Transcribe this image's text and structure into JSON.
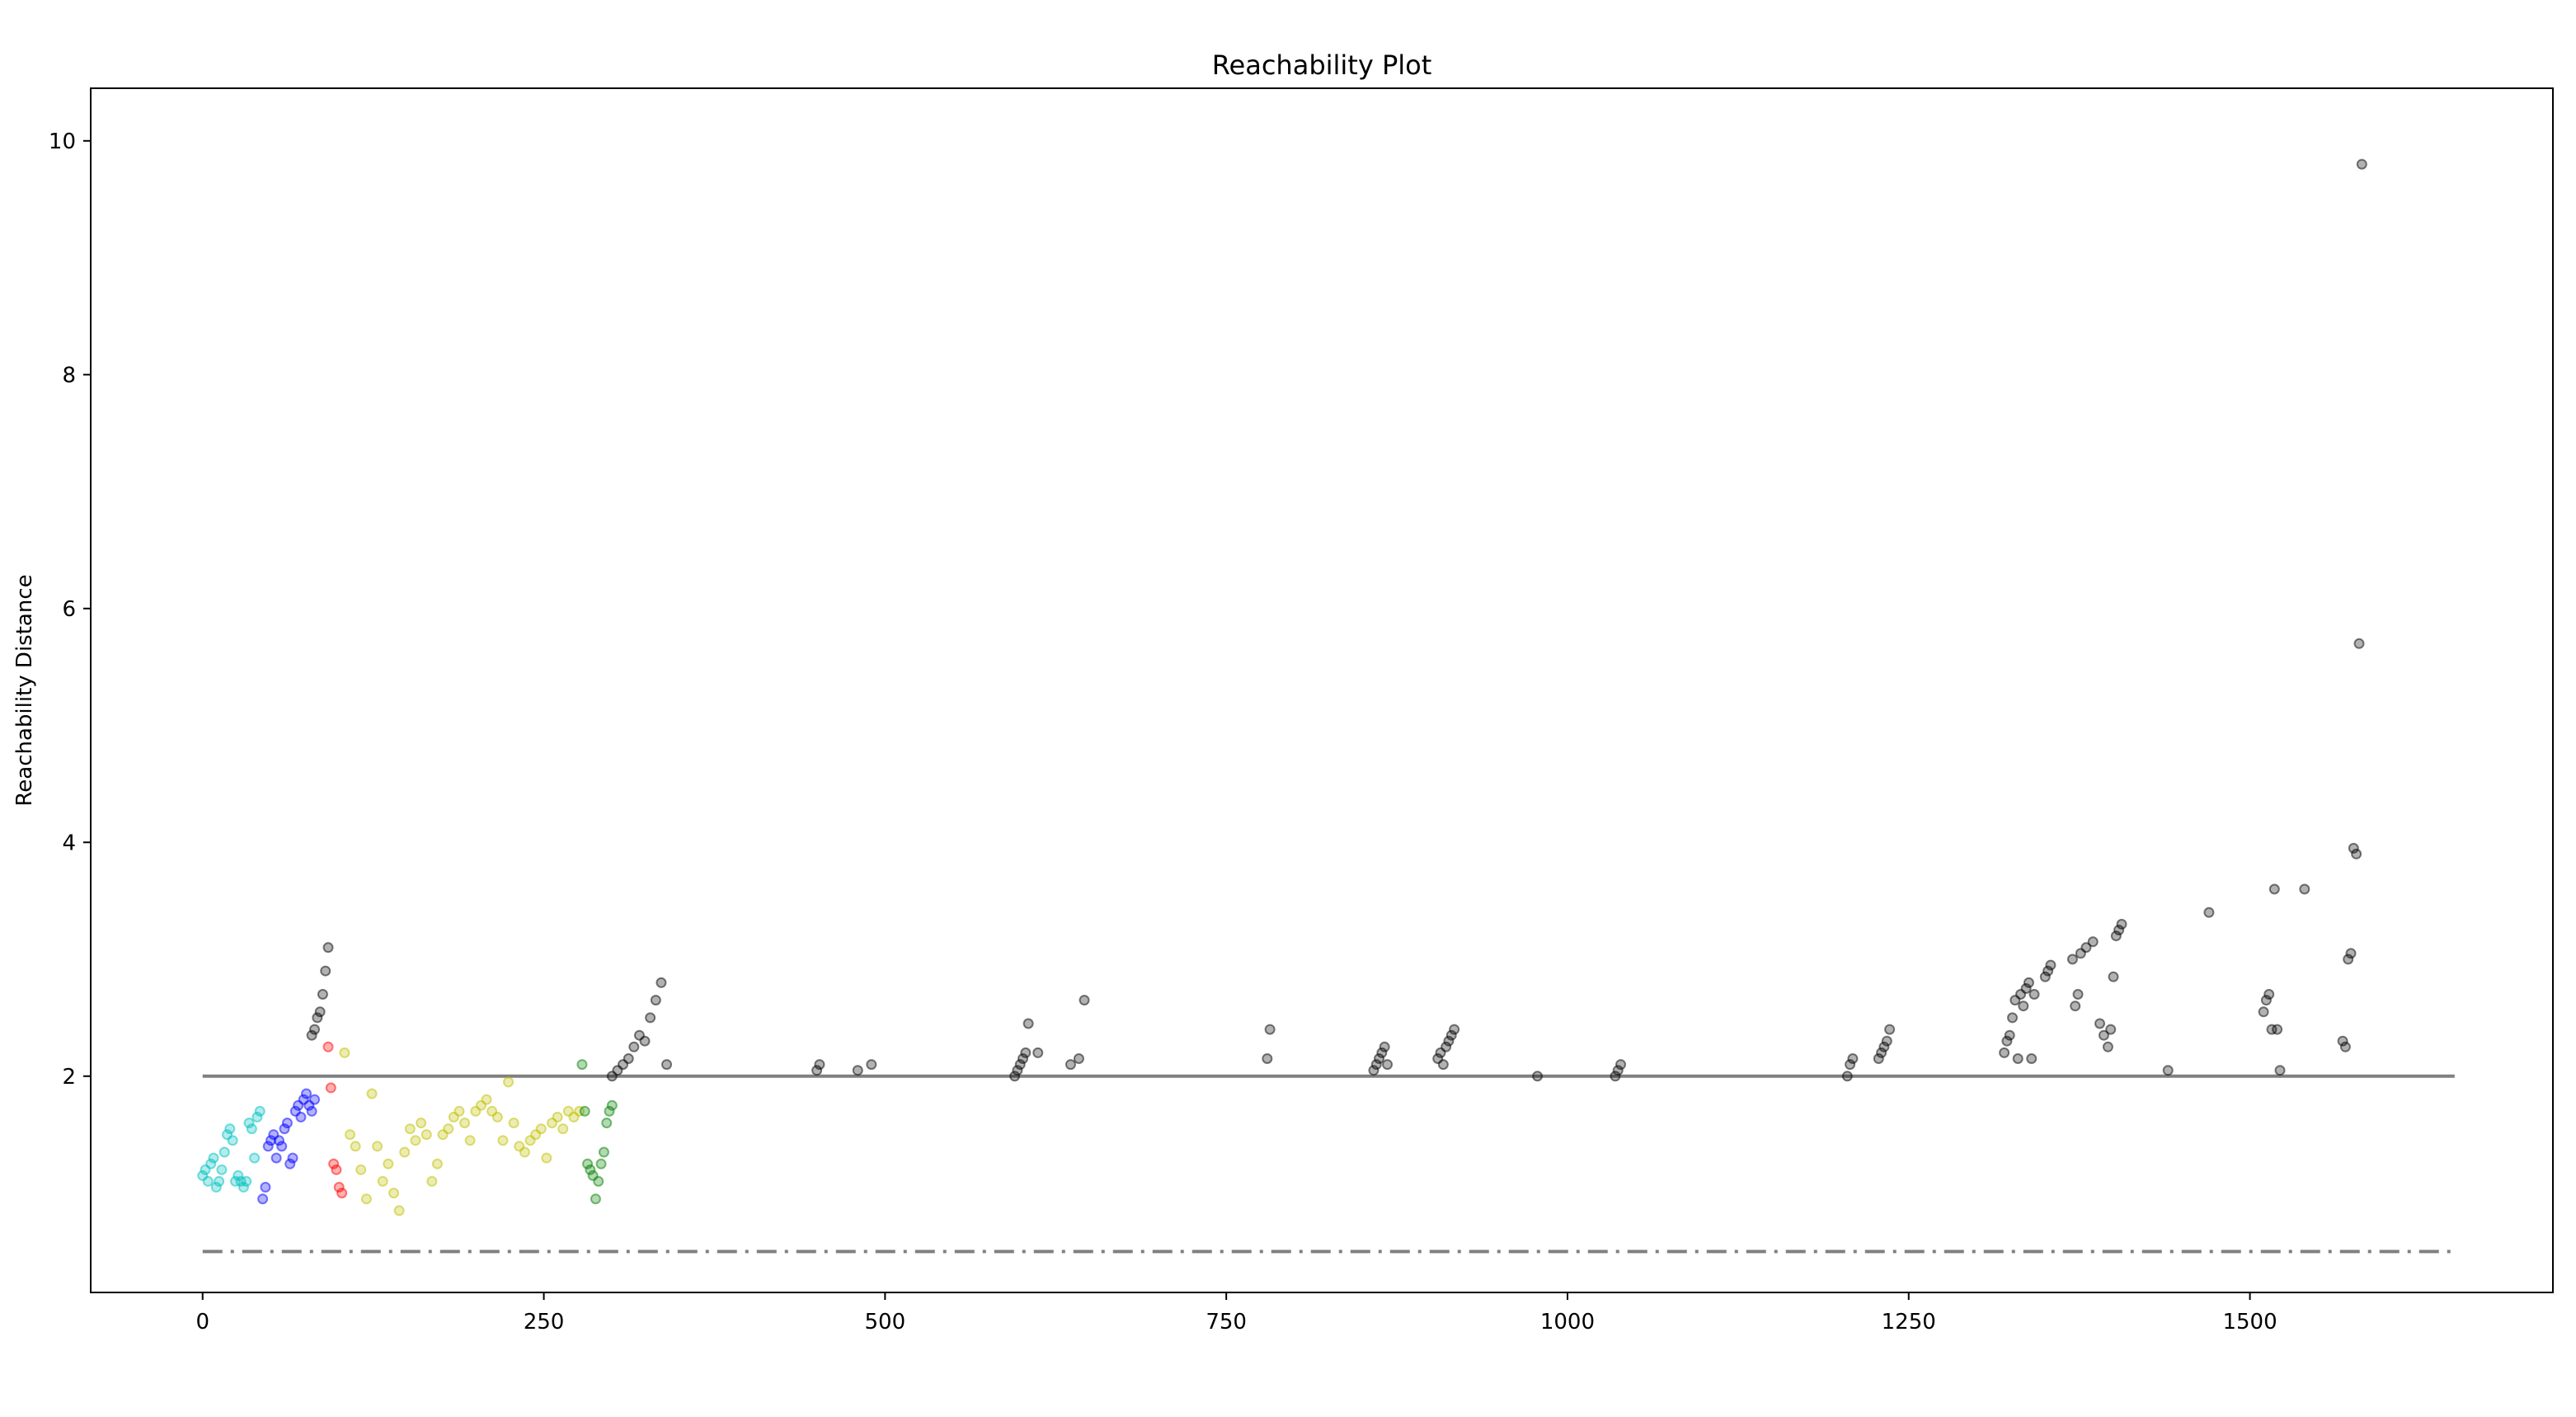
{
  "chart_data": {
    "type": "scatter",
    "title": "Reachability Plot",
    "xlabel": "",
    "ylabel": "Reachability Distance",
    "xlim": [
      -82,
      1722
    ],
    "ylim": [
      0.15,
      10.45
    ],
    "xticks": [
      0,
      250,
      500,
      750,
      1000,
      1250,
      1500
    ],
    "yticks": [
      2,
      4,
      6,
      8,
      10
    ],
    "xtick_labels": [
      "0",
      "250",
      "500",
      "750",
      "1000",
      "1250",
      "1500"
    ],
    "ytick_labels": [
      "2",
      "4",
      "6",
      "8",
      "10"
    ],
    "grid": false,
    "legend": "none",
    "colors": {
      "cyan": "#00bfbf",
      "blue": "#0000ff",
      "red": "#ff0000",
      "yellow": "#bfbf00",
      "green": "#008000",
      "noise": "#000000",
      "reference_line": "#808080"
    },
    "reference_lines": [
      {
        "y": 2.0,
        "style": "solid",
        "color": "#808080"
      },
      {
        "y": 0.5,
        "style": "dashdot",
        "color": "#808080"
      }
    ],
    "series": [
      {
        "color": "#00bfbf",
        "x": [
          0,
          2,
          4,
          6,
          8,
          10,
          12,
          14,
          16,
          18,
          20,
          22,
          24,
          26,
          28,
          30,
          32,
          34,
          36,
          38,
          40,
          42
        ],
        "y": [
          1.15,
          1.2,
          1.1,
          1.25,
          1.3,
          1.05,
          1.1,
          1.2,
          1.35,
          1.5,
          1.55,
          1.45,
          1.1,
          1.15,
          1.1,
          1.05,
          1.1,
          1.6,
          1.55,
          1.3,
          1.65,
          1.7
        ]
      },
      {
        "color": "#0000ff",
        "x": [
          44,
          46,
          48,
          50,
          52,
          54,
          56,
          58,
          60,
          62,
          64,
          66,
          68,
          70,
          72,
          74,
          76,
          78,
          80,
          82
        ],
        "y": [
          0.95,
          1.05,
          1.4,
          1.45,
          1.5,
          1.3,
          1.45,
          1.4,
          1.55,
          1.6,
          1.25,
          1.3,
          1.7,
          1.75,
          1.65,
          1.8,
          1.85,
          1.75,
          1.7,
          1.8
        ]
      },
      {
        "color": "#ff0000",
        "x": [
          92,
          94,
          96,
          98,
          100,
          102
        ],
        "y": [
          2.25,
          1.9,
          1.25,
          1.2,
          1.05,
          1.0
        ]
      },
      {
        "color": "#bfbf00",
        "x": [
          104,
          108,
          112,
          116,
          120,
          124,
          128,
          132,
          136,
          140,
          144,
          148,
          152,
          156,
          160,
          164,
          168,
          172,
          176,
          180,
          184,
          188,
          192,
          196,
          200,
          204,
          208,
          212,
          216,
          220,
          224,
          228,
          232,
          236,
          240,
          244,
          248,
          252,
          256,
          260,
          264,
          268,
          272,
          276
        ],
        "y": [
          2.2,
          1.5,
          1.4,
          1.2,
          0.95,
          1.85,
          1.4,
          1.1,
          1.25,
          1.0,
          0.85,
          1.35,
          1.55,
          1.45,
          1.6,
          1.5,
          1.1,
          1.25,
          1.5,
          1.55,
          1.65,
          1.7,
          1.6,
          1.45,
          1.7,
          1.75,
          1.8,
          1.7,
          1.65,
          1.45,
          1.95,
          1.6,
          1.4,
          1.35,
          1.45,
          1.5,
          1.55,
          1.3,
          1.6,
          1.65,
          1.55,
          1.7,
          1.65,
          1.7
        ]
      },
      {
        "color": "#008000",
        "x": [
          278,
          280,
          282,
          284,
          286,
          288,
          290,
          292,
          294,
          296,
          298,
          300
        ],
        "y": [
          2.1,
          1.7,
          1.25,
          1.2,
          1.15,
          0.95,
          1.1,
          1.25,
          1.35,
          1.6,
          1.7,
          1.75
        ]
      },
      {
        "color": "#000000",
        "x": [
          80,
          82,
          84,
          86,
          88,
          90,
          92,
          300,
          304,
          308,
          312,
          316,
          320,
          324,
          328,
          332,
          336,
          340,
          450,
          452,
          480,
          490,
          595,
          597,
          599,
          601,
          603,
          605,
          612,
          636,
          642,
          646,
          780,
          782,
          858,
          860,
          862,
          864,
          866,
          868,
          905,
          907,
          909,
          911,
          913,
          915,
          917,
          978,
          1035,
          1037,
          1039,
          1205,
          1207,
          1209,
          1228,
          1230,
          1232,
          1234,
          1236,
          1320,
          1322,
          1324,
          1326,
          1328,
          1330,
          1332,
          1334,
          1336,
          1338,
          1340,
          1342,
          1350,
          1352,
          1354,
          1370,
          1372,
          1374,
          1376,
          1380,
          1385,
          1390,
          1393,
          1396,
          1398,
          1400,
          1402,
          1404,
          1406,
          1440,
          1470,
          1510,
          1512,
          1514,
          1516,
          1518,
          1520,
          1522,
          1540,
          1568,
          1570,
          1572,
          1574,
          1576,
          1578,
          1580,
          1582
        ],
        "y": [
          2.35,
          2.4,
          2.5,
          2.55,
          2.7,
          2.9,
          3.1,
          2.0,
          2.05,
          2.1,
          2.15,
          2.25,
          2.35,
          2.3,
          2.5,
          2.65,
          2.8,
          2.1,
          2.05,
          2.1,
          2.05,
          2.1,
          2.0,
          2.05,
          2.1,
          2.15,
          2.2,
          2.45,
          2.2,
          2.1,
          2.15,
          2.65,
          2.15,
          2.4,
          2.05,
          2.1,
          2.15,
          2.2,
          2.25,
          2.1,
          2.15,
          2.2,
          2.1,
          2.25,
          2.3,
          2.35,
          2.4,
          2.0,
          2.0,
          2.05,
          2.1,
          2.0,
          2.1,
          2.15,
          2.15,
          2.2,
          2.25,
          2.3,
          2.4,
          2.2,
          2.3,
          2.35,
          2.5,
          2.65,
          2.15,
          2.7,
          2.6,
          2.75,
          2.8,
          2.15,
          2.7,
          2.85,
          2.9,
          2.95,
          3.0,
          2.6,
          2.7,
          3.05,
          3.1,
          3.15,
          2.45,
          2.35,
          2.25,
          2.4,
          2.85,
          3.2,
          3.25,
          3.3,
          2.05,
          3.4,
          2.55,
          2.65,
          2.7,
          2.4,
          3.6,
          2.4,
          2.05,
          3.6,
          2.3,
          2.25,
          3.0,
          3.05,
          3.95,
          3.9,
          5.7,
          9.8
        ]
      }
    ]
  }
}
